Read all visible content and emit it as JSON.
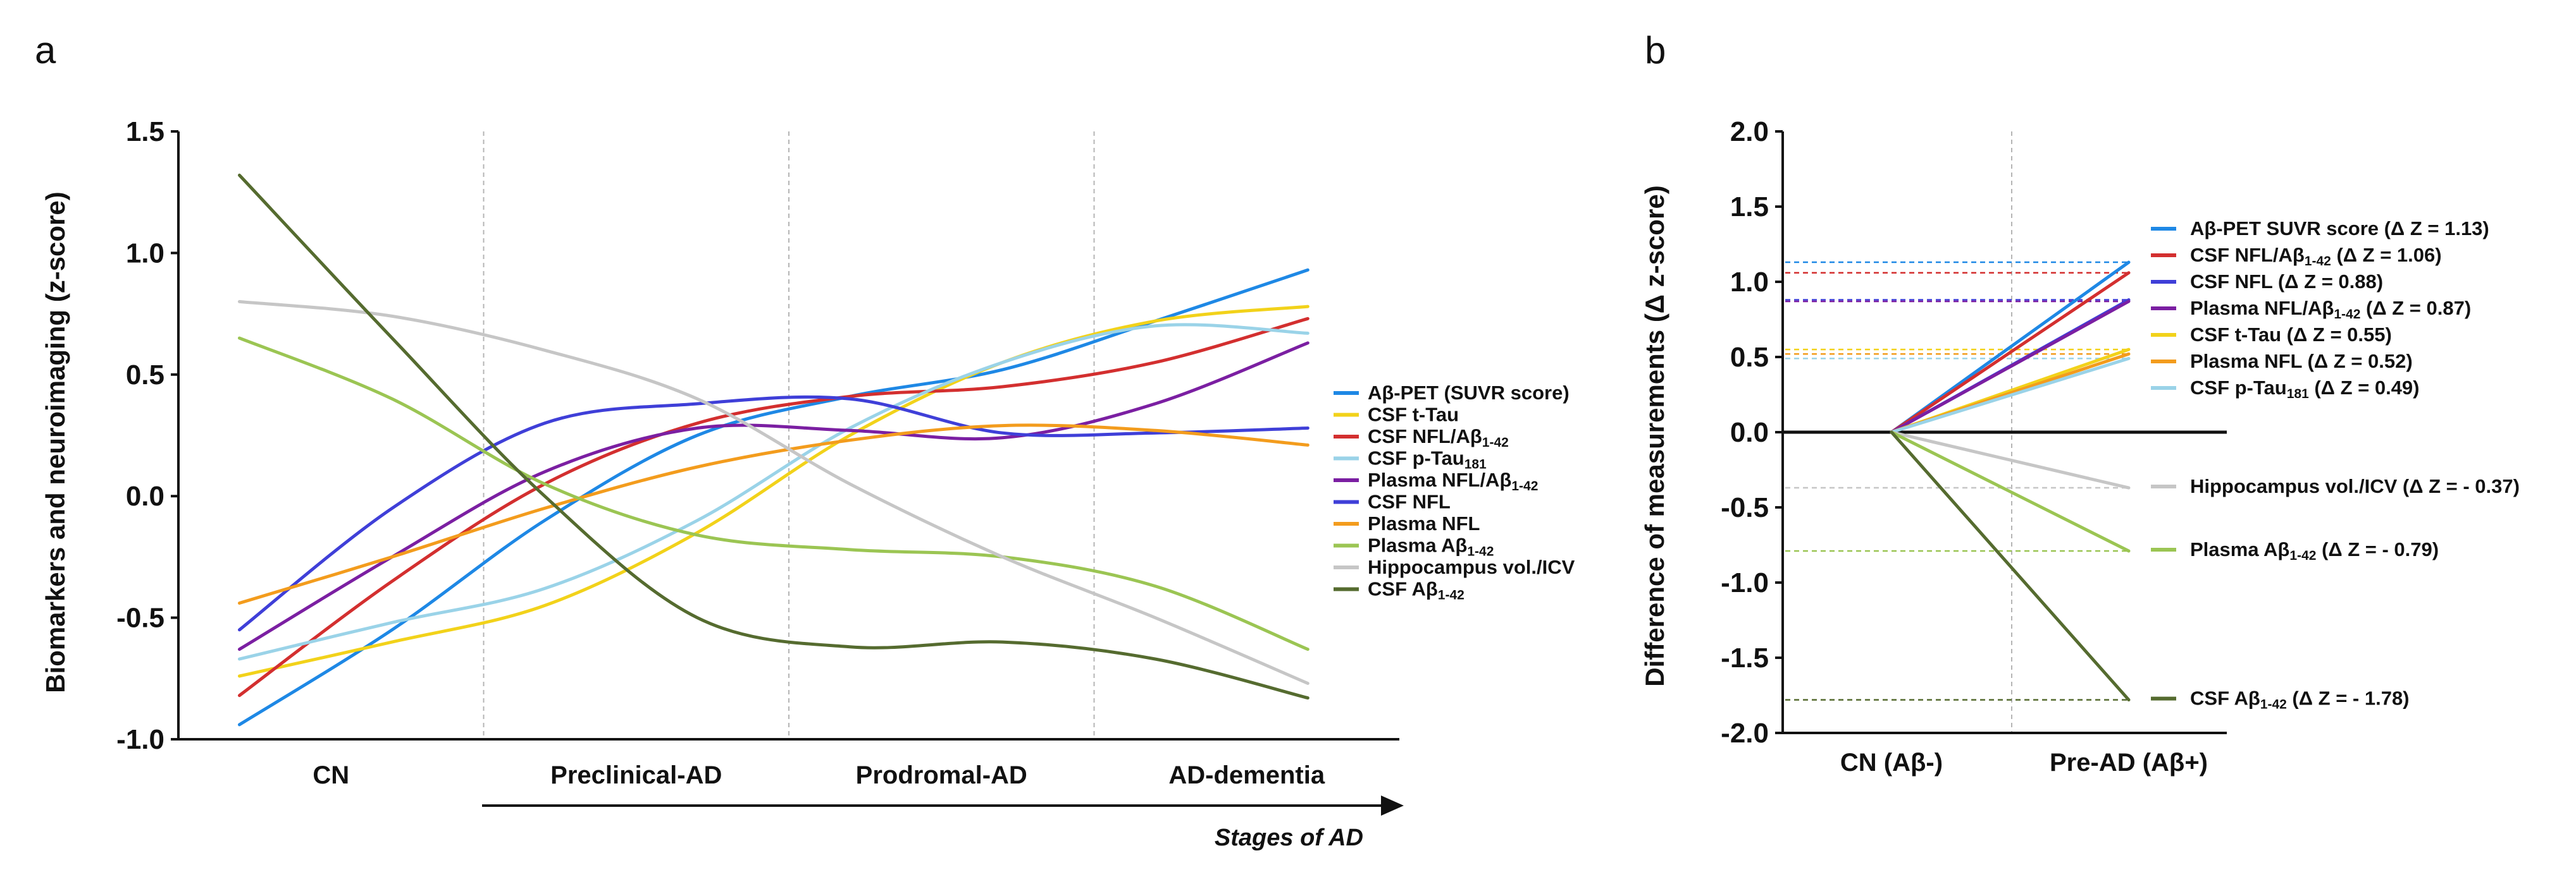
{
  "panel_a": {
    "letter": "a",
    "ylabel": "Biomarkers and neuroimaging (z-score)",
    "stages_label": "Stages of AD",
    "yticks": [
      "1.5",
      "1.0",
      "0.5",
      "0.0",
      "-0.5",
      "-1.0"
    ]
  },
  "panel_b": {
    "letter": "b",
    "ylabel": "Difference of measurements (Δ z-score)",
    "yticks": [
      "2.0",
      "1.5",
      "1.0",
      "0.5",
      "0.0",
      "-0.5",
      "-1.0",
      "-1.5",
      "-2.0"
    ]
  },
  "chart_data": [
    {
      "type": "line",
      "panel": "a",
      "title": "",
      "xlabel": "Stages of AD",
      "ylabel": "Biomarkers and neuroimaging (z-score)",
      "categories": [
        "CN",
        "Preclinical-AD",
        "Prodromal-AD",
        "AD-dementia"
      ],
      "x_range": [
        0,
        4
      ],
      "ylim": [
        -1.0,
        1.5
      ],
      "legend_position": "right",
      "series": [
        {
          "name": "Aβ-PET (SUVR score)",
          "name_main": "Aβ-PET (SUVR score)",
          "name_sub": "",
          "name_tail": "",
          "color": "#1e88e5",
          "x": [
            0.2,
            0.7,
            1.2,
            1.7,
            2.2,
            2.7,
            3.2,
            3.7
          ],
          "y": [
            -0.94,
            -0.55,
            -0.1,
            0.25,
            0.41,
            0.52,
            0.72,
            0.93
          ]
        },
        {
          "name": "CSF t-Tau",
          "name_main": "CSF t-Tau",
          "name_sub": "",
          "name_tail": "",
          "color": "#f2d21a",
          "x": [
            0.2,
            0.7,
            1.2,
            1.7,
            2.2,
            2.7,
            3.2,
            3.7
          ],
          "y": [
            -0.74,
            -0.6,
            -0.45,
            -0.15,
            0.25,
            0.55,
            0.72,
            0.78
          ]
        },
        {
          "name": "CSF NFL/Aβ1-42",
          "name_main": "CSF NFL/Aβ",
          "name_sub": "1-42",
          "name_tail": "",
          "color": "#d32f2f",
          "x": [
            0.2,
            0.7,
            1.2,
            1.7,
            2.2,
            2.7,
            3.2,
            3.7
          ],
          "y": [
            -0.82,
            -0.35,
            0.05,
            0.3,
            0.41,
            0.45,
            0.55,
            0.73
          ]
        },
        {
          "name": "CSF p-Tau181",
          "name_main": "CSF p-Tau",
          "name_sub": "181",
          "name_tail": "",
          "color": "#9ad3e8",
          "x": [
            0.2,
            0.7,
            1.2,
            1.7,
            2.2,
            2.7,
            3.2,
            3.7
          ],
          "y": [
            -0.67,
            -0.52,
            -0.38,
            -0.1,
            0.28,
            0.55,
            0.7,
            0.67
          ]
        },
        {
          "name": "Plasma NFL/Aβ1-42",
          "name_main": "Plasma NFL/Aβ",
          "name_sub": "1-42",
          "name_tail": "",
          "color": "#7b1fa2",
          "x": [
            0.2,
            0.7,
            1.2,
            1.7,
            2.2,
            2.7,
            3.2,
            3.7
          ],
          "y": [
            -0.63,
            -0.25,
            0.1,
            0.28,
            0.27,
            0.24,
            0.38,
            0.63
          ]
        },
        {
          "name": "CSF NFL",
          "name_main": "CSF NFL",
          "name_sub": "",
          "name_tail": "",
          "color": "#3f3fd8",
          "x": [
            0.2,
            0.7,
            1.2,
            1.7,
            2.2,
            2.7,
            3.2,
            3.7
          ],
          "y": [
            -0.55,
            -0.05,
            0.3,
            0.38,
            0.4,
            0.26,
            0.26,
            0.28
          ]
        },
        {
          "name": "Plasma NFL",
          "name_main": "Plasma NFL",
          "name_sub": "",
          "name_tail": "",
          "color": "#f39c1d",
          "x": [
            0.2,
            0.7,
            1.2,
            1.7,
            2.2,
            2.7,
            3.2,
            3.7
          ],
          "y": [
            -0.44,
            -0.25,
            -0.05,
            0.12,
            0.23,
            0.29,
            0.27,
            0.21
          ]
        },
        {
          "name": "Plasma Aβ1-42",
          "name_main": "Plasma Aβ",
          "name_sub": "1-42",
          "name_tail": "",
          "color": "#9bc553",
          "x": [
            0.2,
            0.7,
            1.2,
            1.7,
            2.2,
            2.7,
            3.2,
            3.7
          ],
          "y": [
            0.65,
            0.4,
            0.05,
            -0.16,
            -0.22,
            -0.25,
            -0.37,
            -0.63
          ]
        },
        {
          "name": "Hippocampus vol./ICV",
          "name_main": "Hippocampus vol./ICV",
          "name_sub": "",
          "name_tail": "",
          "color": "#c6c6c6",
          "x": [
            0.2,
            0.7,
            1.2,
            1.7,
            2.2,
            2.7,
            3.2,
            3.7
          ],
          "y": [
            0.8,
            0.74,
            0.6,
            0.4,
            0.05,
            -0.25,
            -0.5,
            -0.77
          ]
        },
        {
          "name": "CSF Aβ1-42",
          "name_main": "CSF Aβ",
          "name_sub": "1-42",
          "name_tail": "",
          "color": "#556b2f",
          "x": [
            0.2,
            0.7,
            1.2,
            1.7,
            2.2,
            2.7,
            3.2,
            3.7
          ],
          "y": [
            1.32,
            0.65,
            0.0,
            -0.5,
            -0.62,
            -0.6,
            -0.67,
            -0.83
          ]
        }
      ]
    },
    {
      "type": "line",
      "panel": "b",
      "title": "",
      "xlabel": "",
      "ylabel": "Difference of measurements (Δ z-score)",
      "categories": [
        "CN (Aβ-)",
        "Pre-AD (Aβ+)"
      ],
      "ylim": [
        -2.0,
        2.0
      ],
      "legend_position": "right",
      "series": [
        {
          "name": "Aβ-PET SUVR score (Δ Z = 1.13)",
          "name_main": "Aβ-PET SUVR score (Δ Z = 1.13)",
          "name_sub": "",
          "name_tail": "",
          "color": "#1e88e5",
          "values": [
            0.0,
            1.13
          ]
        },
        {
          "name": "CSF NFL/Aβ1-42 (Δ Z = 1.06)",
          "name_main": "CSF NFL/Aβ",
          "name_sub": "1-42",
          "name_tail": " (Δ Z = 1.06)",
          "color": "#d32f2f",
          "values": [
            0.0,
            1.06
          ]
        },
        {
          "name": "CSF NFL (Δ Z = 0.88)",
          "name_main": "CSF NFL (Δ Z = 0.88)",
          "name_sub": "",
          "name_tail": "",
          "color": "#3f3fd8",
          "values": [
            0.0,
            0.88
          ]
        },
        {
          "name": "Plasma NFL/Aβ1-42 (Δ Z = 0.87)",
          "name_main": "Plasma NFL/Aβ",
          "name_sub": "1-42",
          "name_tail": " (Δ Z = 0.87)",
          "color": "#7b1fa2",
          "values": [
            0.0,
            0.87
          ]
        },
        {
          "name": "CSF t-Tau (Δ Z = 0.55)",
          "name_main": "CSF t-Tau (Δ Z = 0.55)",
          "name_sub": "",
          "name_tail": "",
          "color": "#f2d21a",
          "values": [
            0.0,
            0.55
          ]
        },
        {
          "name": "Plasma NFL (Δ Z = 0.52)",
          "name_main": "Plasma NFL (Δ Z = 0.52)",
          "name_sub": "",
          "name_tail": "",
          "color": "#f39c1d",
          "values": [
            0.0,
            0.52
          ]
        },
        {
          "name": "CSF p-Tau181 (Δ Z = 0.49)",
          "name_main": "CSF p-Tau",
          "name_sub": "181",
          "name_tail": " (Δ Z = 0.49)",
          "color": "#9ad3e8",
          "values": [
            0.0,
            0.49
          ]
        },
        {
          "name": "Hippocampus vol./ICV (Δ Z = - 0.37)",
          "name_main": "Hippocampus vol./ICV (Δ Z = - 0.37)",
          "name_sub": "",
          "name_tail": "",
          "color": "#c6c6c6",
          "values": [
            0.0,
            -0.37
          ]
        },
        {
          "name": "Plasma Aβ1-42 (Δ Z = - 0.79)",
          "name_main": "Plasma Aβ",
          "name_sub": "1-42",
          "name_tail": " (Δ Z = - 0.79)",
          "color": "#9bc553",
          "values": [
            0.0,
            -0.79
          ]
        },
        {
          "name": "CSF Aβ1-42 (Δ Z = - 1.78)",
          "name_main": "CSF Aβ",
          "name_sub": "1-42",
          "name_tail": " (Δ Z = - 1.78)",
          "color": "#556b2f",
          "values": [
            0.0,
            -1.78
          ]
        }
      ]
    }
  ]
}
